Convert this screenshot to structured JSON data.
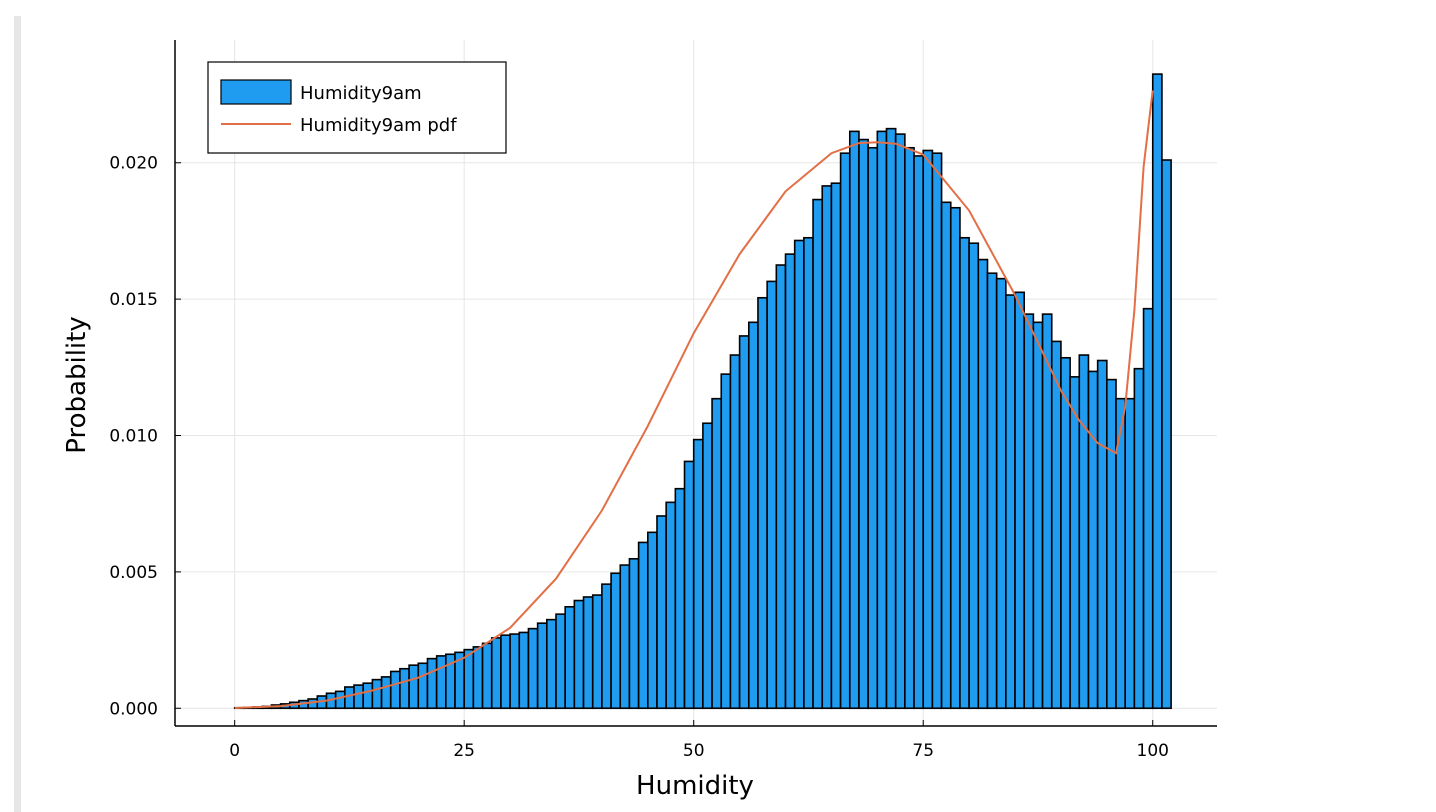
{
  "chart_data": {
    "type": "bar",
    "xlabel": "Humidity",
    "ylabel": "Probability",
    "xlim": [
      -6.5,
      107
    ],
    "ylim": [
      -0.00065,
      0.0245
    ],
    "x_ticks": [
      {
        "value": 0,
        "label": "0"
      },
      {
        "value": 25,
        "label": "25"
      },
      {
        "value": 50,
        "label": "50"
      },
      {
        "value": 75,
        "label": "75"
      },
      {
        "value": 100,
        "label": "100"
      }
    ],
    "y_ticks": [
      {
        "value": 0.0,
        "label": "0.000"
      },
      {
        "value": 0.005,
        "label": "0.005"
      },
      {
        "value": 0.01,
        "label": "0.010"
      },
      {
        "value": 0.015,
        "label": "0.015"
      },
      {
        "value": 0.02,
        "label": "0.020"
      }
    ],
    "grid": true,
    "legend_position": "top-left",
    "bin_width": 1,
    "series": [
      {
        "name": "Humidity9am",
        "kind": "histogram",
        "color": "#1f9bf0",
        "bin_start": 0,
        "values": [
          2e-05,
          3e-05,
          5e-05,
          7e-05,
          0.00012,
          0.00016,
          0.00022,
          0.00028,
          0.00034,
          0.00045,
          0.00055,
          0.00062,
          0.00078,
          0.00085,
          0.00092,
          0.00105,
          0.00115,
          0.00135,
          0.00145,
          0.00158,
          0.00165,
          0.00182,
          0.00192,
          0.00198,
          0.00205,
          0.00215,
          0.00225,
          0.00238,
          0.00258,
          0.00268,
          0.00272,
          0.00278,
          0.00292,
          0.00312,
          0.00325,
          0.00345,
          0.00372,
          0.00395,
          0.00408,
          0.00415,
          0.00455,
          0.00495,
          0.00525,
          0.00548,
          0.00608,
          0.00645,
          0.00705,
          0.00755,
          0.00805,
          0.00905,
          0.00985,
          0.01045,
          0.01135,
          0.01225,
          0.01295,
          0.01365,
          0.01415,
          0.01505,
          0.01565,
          0.01625,
          0.01665,
          0.01715,
          0.01725,
          0.01865,
          0.01915,
          0.01925,
          0.02035,
          0.02115,
          0.02085,
          0.02055,
          0.02115,
          0.02125,
          0.02105,
          0.02055,
          0.02025,
          0.02045,
          0.02035,
          0.01855,
          0.01835,
          0.01725,
          0.01705,
          0.01645,
          0.01595,
          0.01575,
          0.01515,
          0.01525,
          0.01445,
          0.01415,
          0.01445,
          0.01345,
          0.01285,
          0.01215,
          0.01295,
          0.01235,
          0.01275,
          0.01205,
          0.01135,
          0.01135,
          0.01245,
          0.01465,
          0.02325,
          0.0201
        ]
      },
      {
        "name": "Humidity9am pdf",
        "kind": "line",
        "color": "#e26f46",
        "x": [
          0,
          5,
          10,
          15,
          20,
          25,
          30,
          35,
          40,
          45,
          50,
          55,
          60,
          65,
          68,
          70,
          72,
          75,
          80,
          85,
          88,
          90,
          92,
          94,
          96,
          97,
          98,
          99,
          100
        ],
        "y": [
          1e-05,
          8e-05,
          0.00028,
          0.00065,
          0.00112,
          0.00185,
          0.00295,
          0.00475,
          0.00725,
          0.01035,
          0.01375,
          0.01665,
          0.01895,
          0.02035,
          0.02072,
          0.02075,
          0.0207,
          0.0203,
          0.01825,
          0.01515,
          0.01305,
          0.01165,
          0.01055,
          0.00972,
          0.00935,
          0.01105,
          0.0146,
          0.01985,
          0.02265
        ]
      }
    ]
  }
}
